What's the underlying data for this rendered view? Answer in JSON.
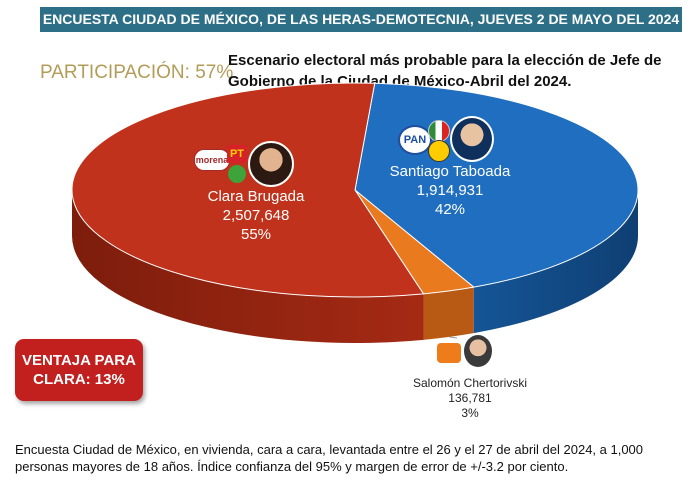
{
  "header": {
    "banner": "ENCUESTA CIUDAD DE MÉXICO, DE LAS HERAS-DEMOTECNIA, JUEVES 2 DE MAYO DEL 2024"
  },
  "participation": "PARTICIPACIÓN: 57%",
  "chart_data": {
    "type": "pie",
    "title": "Escenario electoral más probable para la elección de Jefe de Gobierno de la Ciudad de México-Abril del 2024.",
    "slices": [
      {
        "name": "Clara Brugada",
        "votes": "2,507,648",
        "percent_label": "55%",
        "value": 55,
        "color": "#c0321b"
      },
      {
        "name": "Santiago Taboada",
        "votes": "1,914,931",
        "percent_label": "42%",
        "value": 42,
        "color": "#1f6ebf"
      },
      {
        "name": "Salomón Chertorivski",
        "votes": "136,781",
        "percent_label": "3%",
        "value": 3,
        "color": "#ea7a1e"
      }
    ]
  },
  "logos": {
    "morena": "morena",
    "pt": "PT",
    "pan": "PAN"
  },
  "callout": {
    "line1": "VENTAJA PARA",
    "line2": "CLARA:  13%"
  },
  "footnote": "Encuesta Ciudad de México, en vivienda, cara a cara, levantada entre el 26 y el 27 de abril del 2024, a 1,000 personas mayores de 18 años. Índice confianza del 95% y margen de error de +/-3.2 por ciento."
}
